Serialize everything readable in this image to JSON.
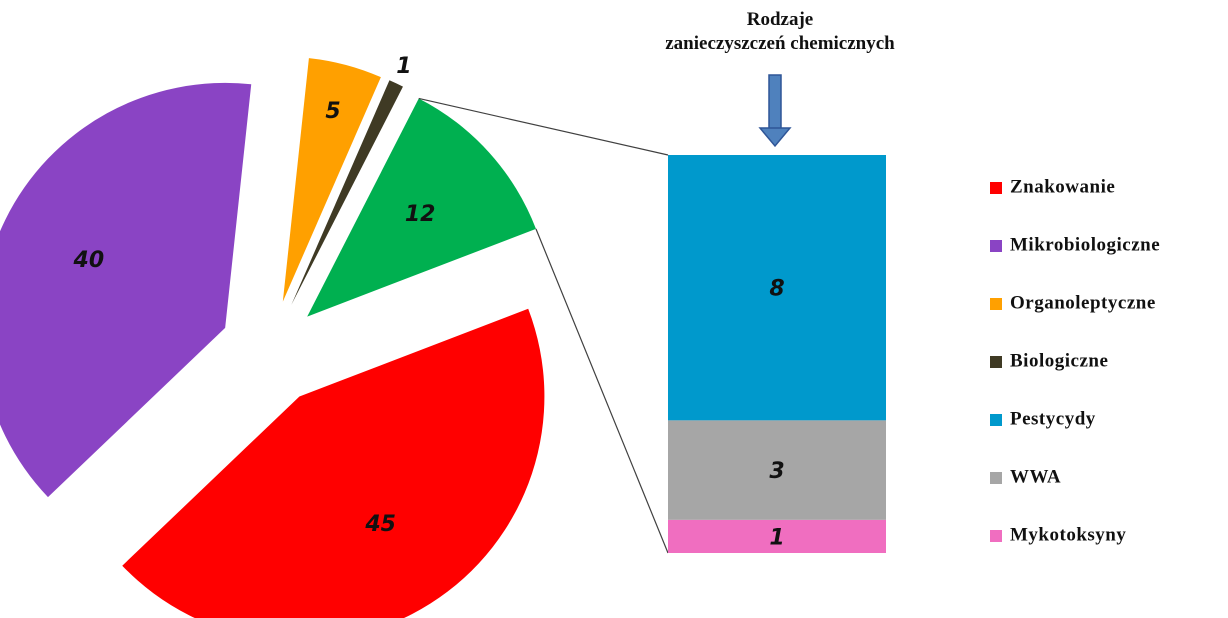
{
  "chart_data": [
    {
      "type": "pie",
      "categories": [
        "Znakowanie",
        "Mikrobiologiczne",
        "Organoleptyczne",
        "Biologiczne",
        null
      ],
      "values": [
        45,
        40,
        5,
        1,
        12
      ],
      "colors": [
        "#ff0000",
        "#8a44c4",
        "#ffa000",
        "#3f3a24",
        "#00b050"
      ]
    },
    {
      "type": "stacked-bar",
      "title": "Rodzaje\nzanieczyszczeń  chemicznych",
      "series": [
        {
          "name": "Pestycydy",
          "color": "#0099cc",
          "values": [
            8
          ]
        },
        {
          "name": "WWA",
          "color": "#a6a6a6",
          "values": [
            3
          ]
        },
        {
          "name": "Mykotoksyny",
          "color": "#f06ec0",
          "values": [
            1
          ]
        }
      ]
    }
  ]
}
